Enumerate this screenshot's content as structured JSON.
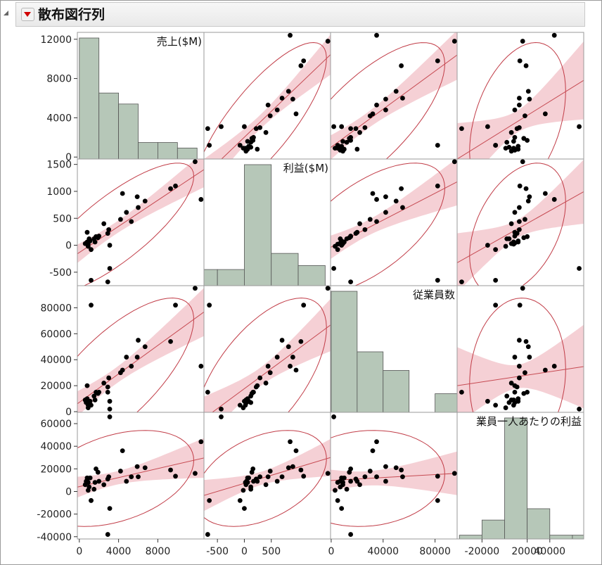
{
  "window": {
    "title": "散布図行列"
  },
  "icons": {
    "collapse": "disclosure-triangle-icon",
    "menu": "red-triangle-menu-icon"
  },
  "colors": {
    "hist_fill": "#b6c7b8",
    "hist_stroke": "#555555",
    "points": "#000000",
    "fit_line": "#c64a52",
    "confidence_band": "#f2c4cb",
    "ellipse": "#c13c47",
    "grid_border": "#9a9a9a"
  },
  "chart_data": {
    "type": "scatter",
    "variables": [
      {
        "name": "売上($M)",
        "ticks": [
          "0",
          "4000",
          "8000",
          "12000"
        ],
        "tick_values": [
          0,
          4000,
          8000,
          12000
        ],
        "range": [
          -200,
          12700
        ],
        "x_ticks": [
          "0",
          "4000",
          "8000"
        ],
        "x_tick_values": [
          0,
          4000,
          8000
        ]
      },
      {
        "name": "利益($M)",
        "ticks": [
          "-500",
          "0",
          "500",
          "1000",
          "1500"
        ],
        "tick_values": [
          -500,
          0,
          500,
          1000,
          1500
        ],
        "range": [
          -750,
          1600
        ],
        "x_ticks": [
          "-500",
          "0",
          "500"
        ],
        "x_tick_values": [
          -500,
          0,
          500
        ]
      },
      {
        "name": "従業員数",
        "ticks": [
          "0",
          "20000",
          "40000",
          "60000",
          "80000"
        ],
        "tick_values": [
          0,
          20000,
          40000,
          60000,
          80000
        ],
        "range": [
          -500,
          97000
        ],
        "x_ticks": [
          "0",
          "40000",
          "80000"
        ],
        "x_tick_values": [
          0,
          40000,
          80000
        ]
      },
      {
        "name": "業員一人あたりの利益",
        "ticks": [
          "-40000",
          "-20000",
          "0",
          "20000",
          "40000",
          "60000"
        ],
        "tick_values": [
          -40000,
          -20000,
          0,
          20000,
          40000,
          60000
        ],
        "range": [
          -42000,
          70000
        ],
        "x_ticks": [
          "-20000",
          "20000",
          "40000"
        ],
        "x_tick_values": [
          -20000,
          20000,
          40000
        ]
      }
    ],
    "points": [
      [
        11800,
        1550,
        95000,
        16000
      ],
      [
        9800,
        1100,
        82000,
        13500
      ],
      [
        9300,
        1050,
        54000,
        19000
      ],
      [
        6700,
        820,
        50000,
        21000
      ],
      [
        12400,
        850,
        35000,
        44000
      ],
      [
        5300,
        440,
        35000,
        13000
      ],
      [
        6000,
        700,
        55000,
        13000
      ],
      [
        5900,
        900,
        42000,
        22000
      ],
      [
        4400,
        960,
        32000,
        36000
      ],
      [
        4800,
        610,
        42000,
        9000
      ],
      [
        4200,
        480,
        30000,
        18000
      ],
      [
        3000,
        290,
        26000,
        13000
      ],
      [
        2900,
        220,
        19000,
        11000
      ],
      [
        2500,
        400,
        22000,
        6000
      ],
      [
        2000,
        170,
        15000,
        9000
      ],
      [
        1900,
        140,
        14000,
        17000
      ],
      [
        1700,
        160,
        15000,
        20000
      ],
      [
        1500,
        120,
        12000,
        2000
      ],
      [
        1600,
        60,
        9000,
        8000
      ],
      [
        1100,
        80,
        8000,
        12000
      ],
      [
        1000,
        120,
        7000,
        4000
      ],
      [
        800,
        60,
        10000,
        12000
      ],
      [
        700,
        40,
        7000,
        9000
      ],
      [
        900,
        20,
        5000,
        8000
      ],
      [
        600,
        30,
        9000,
        6000
      ],
      [
        1200,
        -80,
        5000,
        -8000
      ],
      [
        900,
        -20,
        3000,
        1000
      ],
      [
        1200,
        -650,
        82000,
        -8000
      ],
      [
        3100,
        -430,
        2000,
        66000
      ],
      [
        2900,
        -680,
        15000,
        -38000
      ],
      [
        3100,
        0,
        8000,
        -15000
      ],
      [
        800,
        240,
        20000,
        9000
      ]
    ],
    "histograms": [
      {
        "edges": [
          0,
          2000,
          4000,
          6000,
          8000,
          10000,
          12000
        ],
        "counts": [
          22,
          12,
          10,
          3,
          3,
          2
        ]
      },
      {
        "edges": [
          -750,
          -500,
          0,
          500,
          1000,
          1500
        ],
        "counts": [
          4,
          4,
          30,
          8,
          5
        ]
      },
      {
        "edges": [
          0,
          20000,
          40000,
          60000,
          80000,
          100000
        ],
        "counts": [
          26,
          13,
          9,
          0,
          4
        ]
      },
      {
        "edges": [
          -40000,
          -20000,
          0,
          20000,
          40000,
          60000,
          80000
        ],
        "counts": [
          1,
          5,
          32,
          8,
          1,
          1
        ]
      }
    ],
    "fit": "linear regression with confidence band and density ellipse",
    "grid": false
  }
}
